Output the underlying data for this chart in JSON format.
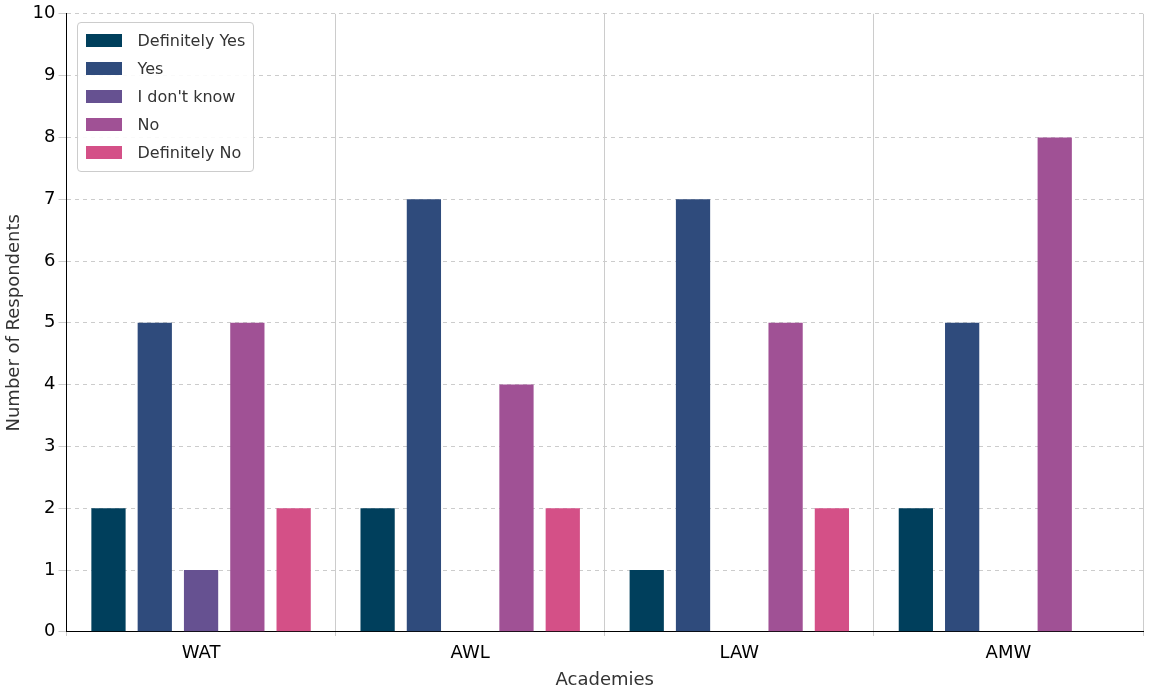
{
  "chart_data": {
    "type": "bar",
    "xlabel": "Academies",
    "ylabel": "Number of Respondents",
    "categories": [
      "WAT",
      "AWL",
      "LAW",
      "AMW"
    ],
    "series": [
      {
        "name": "Definitely Yes",
        "color": "#003f5c",
        "values": [
          2,
          2,
          1,
          2
        ]
      },
      {
        "name": "Yes",
        "color": "#2f4b7c",
        "values": [
          5,
          7,
          7,
          5
        ]
      },
      {
        "name": "I don't know",
        "color": "#665191",
        "values": [
          1,
          0,
          0,
          0
        ]
      },
      {
        "name": "No",
        "color": "#a05195",
        "values": [
          5,
          4,
          5,
          8
        ]
      },
      {
        "name": "Definitely No",
        "color": "#d45087",
        "values": [
          2,
          2,
          2,
          0
        ]
      }
    ],
    "ylim": [
      0,
      10
    ],
    "yticks": [
      0,
      1,
      2,
      3,
      4,
      5,
      6,
      7,
      8,
      9,
      10
    ],
    "grid": true,
    "legend": "top left"
  }
}
